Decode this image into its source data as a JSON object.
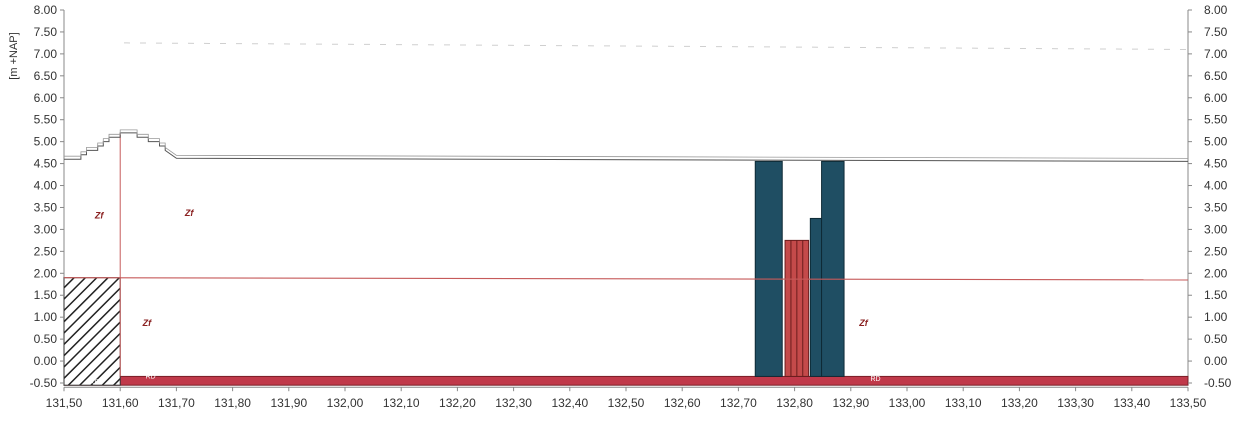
{
  "chart_data": {
    "type": "profile",
    "title": "",
    "ylabel": "[m +NAP]",
    "xlabel": "",
    "xlim": [
      131.5,
      133.5
    ],
    "ylim": [
      -0.5,
      8.0
    ],
    "xticks": [
      "131,50",
      "131,60",
      "131,70",
      "131,80",
      "131,90",
      "132,00",
      "132,10",
      "132,20",
      "132,30",
      "132,40",
      "132,50",
      "132,60",
      "132,70",
      "132,80",
      "132,90",
      "133,00",
      "133,10",
      "133,20",
      "133,30",
      "133,40",
      "133,50"
    ],
    "xtick_values": [
      131.5,
      131.6,
      131.7,
      131.8,
      131.9,
      132.0,
      132.1,
      132.2,
      132.3,
      132.4,
      132.5,
      132.6,
      132.7,
      132.8,
      132.9,
      133.0,
      133.1,
      133.2,
      133.3,
      133.4,
      133.5
    ],
    "yticks_left": [
      "8.00",
      "7.50",
      "7.00",
      "6.50",
      "6.00",
      "5.50",
      "5.00",
      "4.50",
      "4.00",
      "3.50",
      "3.00",
      "2.50",
      "2.00",
      "1.50",
      "1.00",
      "0.50",
      "0.00",
      "-0.50"
    ],
    "yticks_right": [
      "8.00",
      "7.50",
      "7.00",
      "6.50",
      "6.00",
      "5.50",
      "5.00",
      "4.50",
      "4.00",
      "3.50",
      "3.00",
      "2.50",
      "2.00",
      "1.50",
      "1.00",
      "0.50",
      "0.00",
      "-0.50"
    ],
    "ytick_values": [
      8.0,
      7.5,
      7.0,
      6.5,
      6.0,
      5.5,
      5.0,
      4.5,
      4.0,
      3.5,
      3.0,
      2.5,
      2.0,
      1.5,
      1.0,
      0.5,
      0.0,
      -0.5
    ],
    "ground_surface": {
      "x": [
        131.5,
        131.53,
        131.53,
        131.54,
        131.54,
        131.56,
        131.56,
        131.57,
        131.57,
        131.58,
        131.58,
        131.6,
        131.6,
        131.63,
        131.63,
        131.65,
        131.65,
        131.67,
        131.67,
        131.68,
        131.68,
        131.7,
        133.5
      ],
      "y": [
        4.6,
        4.6,
        4.7,
        4.7,
        4.8,
        4.8,
        4.9,
        4.9,
        5.0,
        5.0,
        5.1,
        5.1,
        5.2,
        5.2,
        5.1,
        5.1,
        5.0,
        5.0,
        4.9,
        4.9,
        4.8,
        4.62,
        4.55
      ]
    },
    "layer_boundary": {
      "x": [
        131.5,
        133.5
      ],
      "y": [
        1.9,
        1.85
      ]
    },
    "bottom_band": {
      "top": -0.35,
      "bottom": -0.55
    },
    "hatched_block": {
      "x0": 131.5,
      "x1": 131.6,
      "top": 1.9,
      "bottom": -0.55
    },
    "walls": [
      {
        "x0": 132.73,
        "x1": 132.778,
        "top": 4.55,
        "bottom": -0.35,
        "color": "#1f4e63"
      },
      {
        "x0": 132.828,
        "x1": 132.848,
        "top": 3.25,
        "bottom": -0.35,
        "color": "#1f4e63"
      },
      {
        "x0": 132.848,
        "x1": 132.888,
        "top": 4.55,
        "bottom": -0.35,
        "color": "#1f4e63"
      }
    ],
    "red_piles": [
      {
        "x0": 132.783,
        "x1": 132.825,
        "top": 2.75,
        "bottom": -0.35,
        "color": "#c44a4a"
      }
    ],
    "soil_labels": [
      {
        "text": "Zf",
        "x": 131.555,
        "y": 3.25
      },
      {
        "text": "Zf",
        "x": 131.715,
        "y": 3.3
      },
      {
        "text": "Zf",
        "x": 131.64,
        "y": 0.8
      },
      {
        "text": "Zf",
        "x": 132.915,
        "y": 0.8
      }
    ],
    "band_labels": [
      {
        "text": "RD",
        "x": 131.545,
        "y": -0.52
      },
      {
        "text": "RD",
        "x": 131.645,
        "y": -0.4
      },
      {
        "text": "RD",
        "x": 132.935,
        "y": -0.45
      }
    ],
    "colors": {
      "band": "#c0394a",
      "band_dark": "#7a1f28",
      "wall": "#1f4e63",
      "pile": "#c44a4a",
      "boundary": "#c65a5a",
      "surface": "#555555",
      "axis": "#888888",
      "background": "#ffffff"
    }
  }
}
